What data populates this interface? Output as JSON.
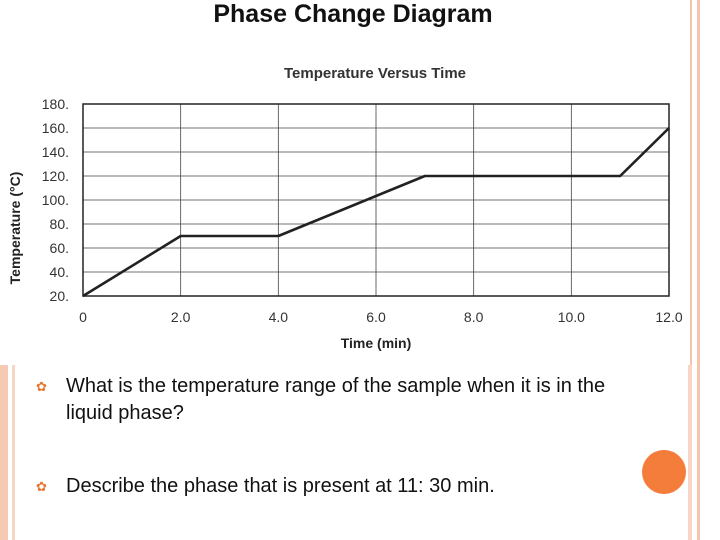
{
  "slide": {
    "title": "Phase Change Diagram",
    "questions": [
      "What is the temperature range of the sample when it is in the liquid phase?",
      "Describe the phase that is present at 11: 30 min."
    ],
    "accent_color": "#f47d3c",
    "bullet_icon": "gear-bullet-icon"
  },
  "chart_data": {
    "type": "line",
    "title": "Temperature Versus Time",
    "xlabel": "Time (min)",
    "ylabel": "Temperature (°C)",
    "xlim": [
      0,
      12
    ],
    "ylim": [
      20,
      180
    ],
    "x_ticks": [
      "0",
      "2.0",
      "4.0",
      "6.0",
      "8.0",
      "10.0",
      "12.0"
    ],
    "y_ticks": [
      "20.",
      "40.",
      "60.",
      "80.",
      "100.",
      "120.",
      "140.",
      "160.",
      "180."
    ],
    "grid": true,
    "series": [
      {
        "x": [
          0,
          2,
          4,
          7,
          11,
          12
        ],
        "y": [
          20,
          70,
          70,
          120,
          120,
          160
        ],
        "color": "#222222"
      }
    ]
  }
}
